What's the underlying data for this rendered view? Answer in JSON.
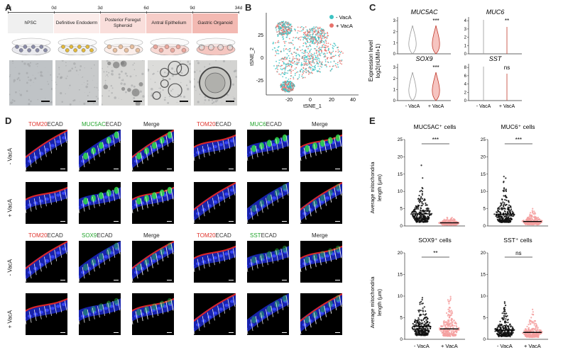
{
  "panels": {
    "A": "A",
    "B": "B",
    "C": "C",
    "D": "D",
    "E": "E"
  },
  "panelA": {
    "timepoints": [
      "-3d",
      "0d",
      "3d",
      "6d",
      "9d",
      "34d"
    ],
    "stages": [
      {
        "label": "hPSC",
        "color": "#f0f0f0"
      },
      {
        "label": "Definitive Endoderm",
        "color": "#fbecea"
      },
      {
        "label": "Posterior Foregut Spheroid",
        "color": "#f9dedb"
      },
      {
        "label": "Antral Epithelium",
        "color": "#f6cdc8"
      },
      {
        "label": "Gastric Organoid",
        "color": "#f3b9b2"
      }
    ]
  },
  "panelB": {
    "legend": [
      {
        "name": "- VacA",
        "color": "#3cc2c2"
      },
      {
        "name": "+ VacA",
        "color": "#e8716b"
      }
    ],
    "xlabel": "tSNE_1",
    "ylabel": "tSNE_2",
    "xticks": [
      "-20",
      "0",
      "20",
      "40"
    ],
    "yticks": [
      "25",
      "0",
      "-25"
    ]
  },
  "panelC": {
    "ylabel": "Expression level\nlog2(nUMI+1)",
    "ylabel1": "Expression level",
    "ylabel2": "log2(nUMI+1)",
    "xticks": [
      "- VacA",
      "+ VacA"
    ],
    "genes": [
      {
        "name": "MUC5AC",
        "sig": "***",
        "yticks": [
          "0",
          "1",
          "2",
          "3"
        ]
      },
      {
        "name": "MUC6",
        "sig": "**",
        "yticks": [
          "0",
          "1",
          "2",
          "3",
          "4"
        ]
      },
      {
        "name": "SOX9",
        "sig": "***",
        "yticks": [
          "0",
          "1",
          "2",
          "3"
        ]
      },
      {
        "name": "SST",
        "sig": "ns",
        "yticks": [
          "0",
          "2",
          "4",
          "6",
          "8"
        ]
      }
    ]
  },
  "panelD": {
    "groups": [
      {
        "c1a": "TOM20",
        "c1b": "ECAD",
        "c2a": "MUC5AC",
        "c2b": "ECAD",
        "c3": "Merge"
      },
      {
        "c1a": "TOM20",
        "c1b": "ECAD",
        "c2a": "MUC6",
        "c2b": "ECAD",
        "c3": "Merge"
      },
      {
        "c1a": "TOM20",
        "c1b": "ECAD",
        "c2a": "SOX9",
        "c2b": "ECAD",
        "c3": "Merge"
      },
      {
        "c1a": "TOM20",
        "c1b": "ECAD",
        "c2a": "SST",
        "c2b": "ECAD",
        "c3": "Merge"
      }
    ],
    "rows": [
      "- VacA",
      "+ VacA",
      "- VacA",
      "+ VacA"
    ]
  },
  "panelE": {
    "ylabel1": "Average mitochondria",
    "ylabel2": "length (µm)",
    "xticks": [
      "- VacA",
      "+ VacA"
    ],
    "colors": {
      "neg": "#111111",
      "pos": "#f4a0a0"
    },
    "plots": [
      {
        "title": "MUC5AC⁺ cells",
        "sig": "***",
        "yticks": [
          "0",
          "5",
          "10",
          "15",
          "20",
          "25"
        ],
        "ymax": 25,
        "neg_median": 3.5,
        "pos_median": 0.9,
        "neg_max": 19,
        "pos_max": 2.5
      },
      {
        "title": "MUC6⁺ cells",
        "sig": "***",
        "yticks": [
          "0",
          "5",
          "10",
          "15",
          "20",
          "25"
        ],
        "ymax": 25,
        "neg_median": 3.4,
        "pos_median": 1.3,
        "neg_max": 24,
        "pos_max": 15
      },
      {
        "title": "SOX9⁺ cells",
        "sig": "**",
        "yticks": [
          "0",
          "5",
          "10",
          "15",
          "20"
        ],
        "ymax": 20,
        "neg_median": 3.0,
        "pos_median": 2.4,
        "neg_max": 12,
        "pos_max": 10
      },
      {
        "title": "SST⁺ cells",
        "sig": "ns",
        "yticks": [
          "0",
          "5",
          "10",
          "15",
          "20"
        ],
        "ymax": 20,
        "neg_median": 2.1,
        "pos_median": 1.6,
        "neg_max": 9,
        "pos_max": 8
      }
    ]
  }
}
